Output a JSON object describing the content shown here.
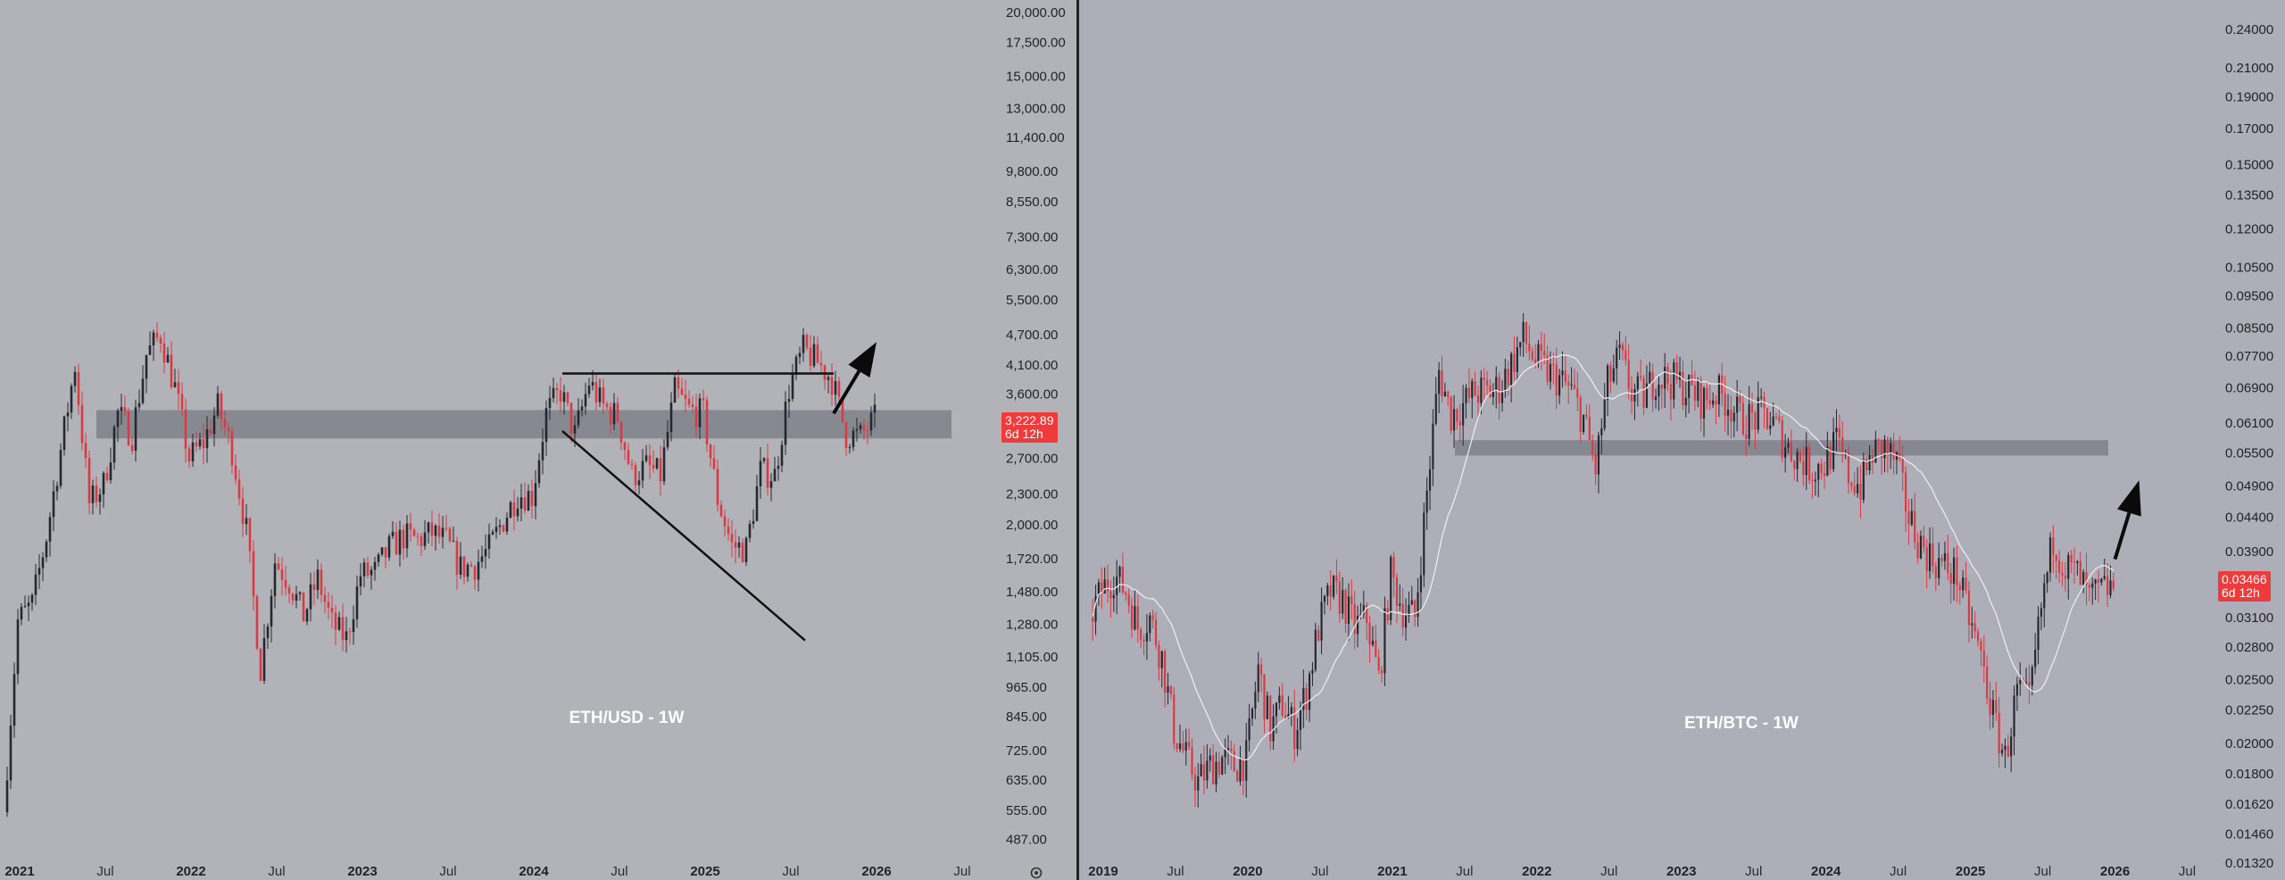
{
  "colors": {
    "up": "#262830",
    "down": "#d93a44",
    "zone": "#7f8189",
    "trendline": "#111111",
    "arrow": "#0a0a0a",
    "ma": "#f2f2f2",
    "badge": "#ef3b3b"
  },
  "chart_data": [
    {
      "type": "candlestick",
      "title": "ETH/USD - 1W",
      "scale": "log",
      "ylim": [
        480,
        20000
      ],
      "y_ticks": [
        "20,000.00",
        "17,500.00",
        "15,000.00",
        "13,000.00",
        "11,400.00",
        "9,800.00",
        "8,550.00",
        "7,300.00",
        "6,300.00",
        "5,500.00",
        "4,700.00",
        "4,100.00",
        "3,600.00",
        "2,700.00",
        "2,300.00",
        "2,000.00",
        "1,720.00",
        "1,480.00",
        "1,280.00",
        "1,105.00",
        "965.00",
        "845.00",
        "725.00",
        "635.00",
        "555.00",
        "487.00"
      ],
      "x_ticks": [
        "2021",
        "Jul",
        "2022",
        "Jul",
        "2023",
        "Jul",
        "2024",
        "Jul",
        "2025",
        "Jul",
        "2026",
        "Jul"
      ],
      "xlim": [
        "2020-12",
        "2026-09"
      ],
      "price_badge": {
        "value": "3,222.89",
        "countdown": "6d 12h"
      },
      "last_price": 3222.89,
      "support_zone": [
        2950,
        3350
      ],
      "resistance_line": {
        "from": [
          "2024-03",
          3950
        ],
        "to": [
          "2025-10",
          3950
        ]
      },
      "descending_trendline": {
        "from": [
          "2024-03",
          3050
        ],
        "to": [
          "2025-08",
          1190
        ]
      },
      "projection_arrow": {
        "from": [
          "2025-10",
          3300
        ],
        "to": [
          "2026-01",
          4550
        ]
      },
      "series": [
        {
          "t": "2020-12",
          "close": 550
        },
        {
          "t": "2021-01",
          "close": 1300
        },
        {
          "t": "2021-02",
          "close": 1400
        },
        {
          "t": "2021-03",
          "close": 1900
        },
        {
          "t": "2021-04",
          "close": 2800
        },
        {
          "t": "2021-05",
          "close": 4100
        },
        {
          "t": "2021-06",
          "close": 2200
        },
        {
          "t": "2021-07",
          "close": 2400
        },
        {
          "t": "2021-08",
          "close": 3300
        },
        {
          "t": "2021-09",
          "close": 3000
        },
        {
          "t": "2021-10",
          "close": 4300
        },
        {
          "t": "2021-11",
          "close": 4700
        },
        {
          "t": "2021-12",
          "close": 3700
        },
        {
          "t": "2022-01",
          "close": 2700
        },
        {
          "t": "2022-02",
          "close": 2900
        },
        {
          "t": "2022-03",
          "close": 3400
        },
        {
          "t": "2022-04",
          "close": 2800
        },
        {
          "t": "2022-05",
          "close": 1950
        },
        {
          "t": "2022-06",
          "close": 1050
        },
        {
          "t": "2022-07",
          "close": 1700
        },
        {
          "t": "2022-08",
          "close": 1550
        },
        {
          "t": "2022-09",
          "close": 1330
        },
        {
          "t": "2022-10",
          "close": 1570
        },
        {
          "t": "2022-11",
          "close": 1280
        },
        {
          "t": "2022-12",
          "close": 1200
        },
        {
          "t": "2023-01",
          "close": 1600
        },
        {
          "t": "2023-02",
          "close": 1620
        },
        {
          "t": "2023-03",
          "close": 1800
        },
        {
          "t": "2023-04",
          "close": 1900
        },
        {
          "t": "2023-05",
          "close": 1870
        },
        {
          "t": "2023-06",
          "close": 1930
        },
        {
          "t": "2023-07",
          "close": 1860
        },
        {
          "t": "2023-08",
          "close": 1650
        },
        {
          "t": "2023-09",
          "close": 1670
        },
        {
          "t": "2023-10",
          "close": 1800
        },
        {
          "t": "2023-11",
          "close": 2050
        },
        {
          "t": "2023-12",
          "close": 2300
        },
        {
          "t": "2024-01",
          "close": 2280
        },
        {
          "t": "2024-02",
          "close": 3300
        },
        {
          "t": "2024-03",
          "close": 3650
        },
        {
          "t": "2024-04",
          "close": 3000
        },
        {
          "t": "2024-05",
          "close": 3800
        },
        {
          "t": "2024-06",
          "close": 3400
        },
        {
          "t": "2024-07",
          "close": 3250
        },
        {
          "t": "2024-08",
          "close": 2500
        },
        {
          "t": "2024-09",
          "close": 2600
        },
        {
          "t": "2024-10",
          "close": 2500
        },
        {
          "t": "2024-11",
          "close": 3650
        },
        {
          "t": "2024-12",
          "close": 3350
        },
        {
          "t": "2025-01",
          "close": 3300
        },
        {
          "t": "2025-02",
          "close": 2250
        },
        {
          "t": "2025-03",
          "close": 1820
        },
        {
          "t": "2025-04",
          "close": 1800
        },
        {
          "t": "2025-05",
          "close": 2550
        },
        {
          "t": "2025-06",
          "close": 2500
        },
        {
          "t": "2025-07",
          "close": 3700
        },
        {
          "t": "2025-08",
          "close": 4400
        },
        {
          "t": "2025-09",
          "close": 4150
        },
        {
          "t": "2025-10",
          "close": 3850
        },
        {
          "t": "2025-11",
          "close": 3000
        },
        {
          "t": "2025-12",
          "close": 2980
        },
        {
          "t": "2026-01",
          "close": 3220
        }
      ]
    },
    {
      "type": "candlestick",
      "title": "ETH/BTC - 1W",
      "scale": "log",
      "ylim": [
        0.0132,
        0.25
      ],
      "y_ticks": [
        "0.24000",
        "0.21000",
        "0.19000",
        "0.17000",
        "0.15000",
        "0.13500",
        "0.12000",
        "0.10500",
        "0.09500",
        "0.08500",
        "0.07700",
        "0.06900",
        "0.06100",
        "0.05500",
        "0.04900",
        "0.04400",
        "0.03900",
        "0.03100",
        "0.02800",
        "0.02500",
        "0.02250",
        "0.02000",
        "0.01800",
        "0.01620",
        "0.01460",
        "0.01320"
      ],
      "x_ticks": [
        "2019",
        "Jul",
        "2020",
        "Jul",
        "2021",
        "Jul",
        "2022",
        "Jul",
        "2023",
        "Jul",
        "2024",
        "Jul",
        "2025",
        "Jul",
        "2026",
        "Jul"
      ],
      "xlim": [
        "2018-11",
        "2026-10"
      ],
      "price_badge": {
        "value": "0.03466",
        "countdown": "6d 12h"
      },
      "last_price": 0.03466,
      "support_zone": [
        0.0545,
        0.0575
      ],
      "projection_arrow": {
        "from": [
          "2026-01",
          0.038
        ],
        "to": [
          "2026-03",
          0.05
        ]
      },
      "series": [
        {
          "t": "2018-12",
          "close": 0.031
        },
        {
          "t": "2019-01",
          "close": 0.034
        },
        {
          "t": "2019-02",
          "close": 0.036
        },
        {
          "t": "2019-03",
          "close": 0.034
        },
        {
          "t": "2019-04",
          "close": 0.03
        },
        {
          "t": "2019-05",
          "close": 0.031
        },
        {
          "t": "2019-06",
          "close": 0.027
        },
        {
          "t": "2019-07",
          "close": 0.021
        },
        {
          "t": "2019-08",
          "close": 0.019
        },
        {
          "t": "2019-09",
          "close": 0.0175
        },
        {
          "t": "2019-10",
          "close": 0.0185
        },
        {
          "t": "2019-11",
          "close": 0.019
        },
        {
          "t": "2019-12",
          "close": 0.0185
        },
        {
          "t": "2020-01",
          "close": 0.019
        },
        {
          "t": "2020-02",
          "close": 0.026
        },
        {
          "t": "2020-03",
          "close": 0.021
        },
        {
          "t": "2020-04",
          "close": 0.023
        },
        {
          "t": "2020-05",
          "close": 0.021
        },
        {
          "t": "2020-06",
          "close": 0.024
        },
        {
          "t": "2020-07",
          "close": 0.03
        },
        {
          "t": "2020-08",
          "close": 0.034
        },
        {
          "t": "2020-09",
          "close": 0.033
        },
        {
          "t": "2020-10",
          "close": 0.03
        },
        {
          "t": "2020-11",
          "close": 0.031
        },
        {
          "t": "2020-12",
          "close": 0.025
        },
        {
          "t": "2021-01",
          "close": 0.036
        },
        {
          "t": "2021-02",
          "close": 0.032
        },
        {
          "t": "2021-03",
          "close": 0.031
        },
        {
          "t": "2021-04",
          "close": 0.048
        },
        {
          "t": "2021-05",
          "close": 0.073
        },
        {
          "t": "2021-06",
          "close": 0.063
        },
        {
          "t": "2021-07",
          "close": 0.065
        },
        {
          "t": "2021-08",
          "close": 0.068
        },
        {
          "t": "2021-09",
          "close": 0.068
        },
        {
          "t": "2021-10",
          "close": 0.069
        },
        {
          "t": "2021-11",
          "close": 0.075
        },
        {
          "t": "2021-12",
          "close": 0.082
        },
        {
          "t": "2022-01",
          "close": 0.076
        },
        {
          "t": "2022-02",
          "close": 0.073
        },
        {
          "t": "2022-03",
          "close": 0.071
        },
        {
          "t": "2022-04",
          "close": 0.068
        },
        {
          "t": "2022-05",
          "close": 0.062
        },
        {
          "t": "2022-06",
          "close": 0.052
        },
        {
          "t": "2022-07",
          "close": 0.07
        },
        {
          "t": "2022-08",
          "close": 0.077
        },
        {
          "t": "2022-09",
          "close": 0.068
        },
        {
          "t": "2022-10",
          "close": 0.067
        },
        {
          "t": "2022-11",
          "close": 0.072
        },
        {
          "t": "2022-12",
          "close": 0.071
        },
        {
          "t": "2023-01",
          "close": 0.07
        },
        {
          "t": "2023-02",
          "close": 0.068
        },
        {
          "t": "2023-03",
          "close": 0.066
        },
        {
          "t": "2023-04",
          "close": 0.068
        },
        {
          "t": "2023-05",
          "close": 0.066
        },
        {
          "t": "2023-06",
          "close": 0.062
        },
        {
          "t": "2023-07",
          "close": 0.062
        },
        {
          "t": "2023-08",
          "close": 0.063
        },
        {
          "t": "2023-09",
          "close": 0.06
        },
        {
          "t": "2023-10",
          "close": 0.056
        },
        {
          "t": "2023-11",
          "close": 0.054
        },
        {
          "t": "2023-12",
          "close": 0.052
        },
        {
          "t": "2024-01",
          "close": 0.053
        },
        {
          "t": "2024-02",
          "close": 0.057
        },
        {
          "t": "2024-03",
          "close": 0.051
        },
        {
          "t": "2024-04",
          "close": 0.049
        },
        {
          "t": "2024-05",
          "close": 0.055
        },
        {
          "t": "2024-06",
          "close": 0.056
        },
        {
          "t": "2024-07",
          "close": 0.053
        },
        {
          "t": "2024-08",
          "close": 0.044
        },
        {
          "t": "2024-09",
          "close": 0.04
        },
        {
          "t": "2024-10",
          "close": 0.038
        },
        {
          "t": "2024-11",
          "close": 0.037
        },
        {
          "t": "2024-12",
          "close": 0.036
        },
        {
          "t": "2025-01",
          "close": 0.031
        },
        {
          "t": "2025-02",
          "close": 0.027
        },
        {
          "t": "2025-03",
          "close": 0.022
        },
        {
          "t": "2025-04",
          "close": 0.019
        },
        {
          "t": "2025-05",
          "close": 0.024
        },
        {
          "t": "2025-06",
          "close": 0.023
        },
        {
          "t": "2025-07",
          "close": 0.032
        },
        {
          "t": "2025-08",
          "close": 0.041
        },
        {
          "t": "2025-09",
          "close": 0.037
        },
        {
          "t": "2025-10",
          "close": 0.036
        },
        {
          "t": "2025-11",
          "close": 0.033
        },
        {
          "t": "2025-12",
          "close": 0.034
        },
        {
          "t": "2026-01",
          "close": 0.0347
        }
      ]
    }
  ]
}
